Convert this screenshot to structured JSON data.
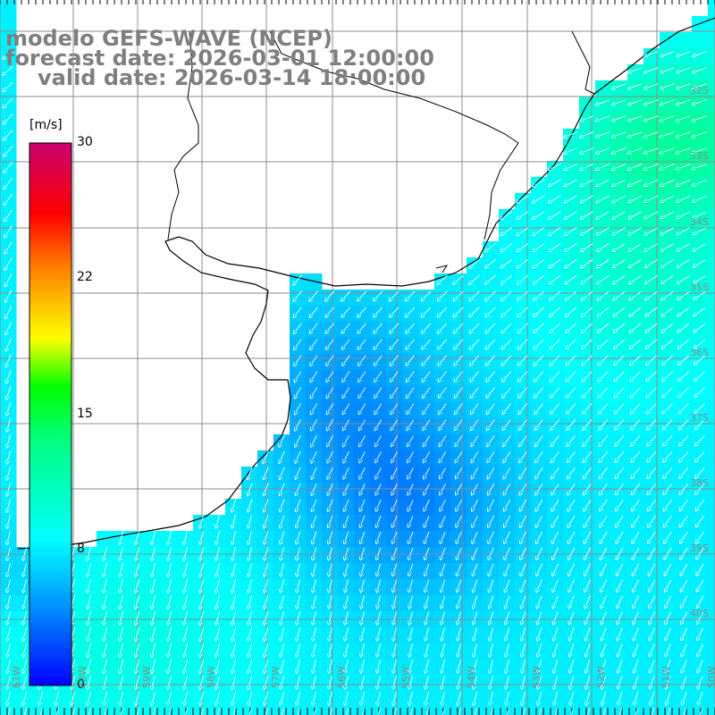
{
  "header": {
    "title": "modelo GEFS-WAVE (NCEP)",
    "forecast": "forecast date: 2026-03-01 12:00:00",
    "valid": "valid date: 2026-03-14 18:00:00"
  },
  "colorbar": {
    "units": "[m/s]",
    "ticks": [
      {
        "value": 30,
        "label": "30"
      },
      {
        "value": 22,
        "label": "22"
      },
      {
        "value": 15,
        "label": "15"
      },
      {
        "value": 8,
        "label": "8"
      },
      {
        "value": 0,
        "label": "0"
      }
    ],
    "min": 0,
    "max": 30,
    "stops": [
      "#0000ff",
      "#00b4ff",
      "#00ffff",
      "#00ff00",
      "#ffff00",
      "#ff8000",
      "#ff0000",
      "#c8006e"
    ]
  },
  "map": {
    "region": "South-western Atlantic (Río de la Plata to Argentine shelf)",
    "lat_labels": [
      "32S",
      "33S",
      "34S",
      "35S",
      "36S",
      "37S",
      "38S",
      "39S",
      "40S"
    ],
    "lon_labels": [
      "61W",
      "60W",
      "59W",
      "58W",
      "57W",
      "56W",
      "55W",
      "54W",
      "53W",
      "52W",
      "51W",
      "50W"
    ],
    "wind_direction": "from NE/E, arrows pointing SW",
    "field_note": "wind speed mostly 4-12 m/s; strongest (green, ~10-12) in NE corner"
  }
}
